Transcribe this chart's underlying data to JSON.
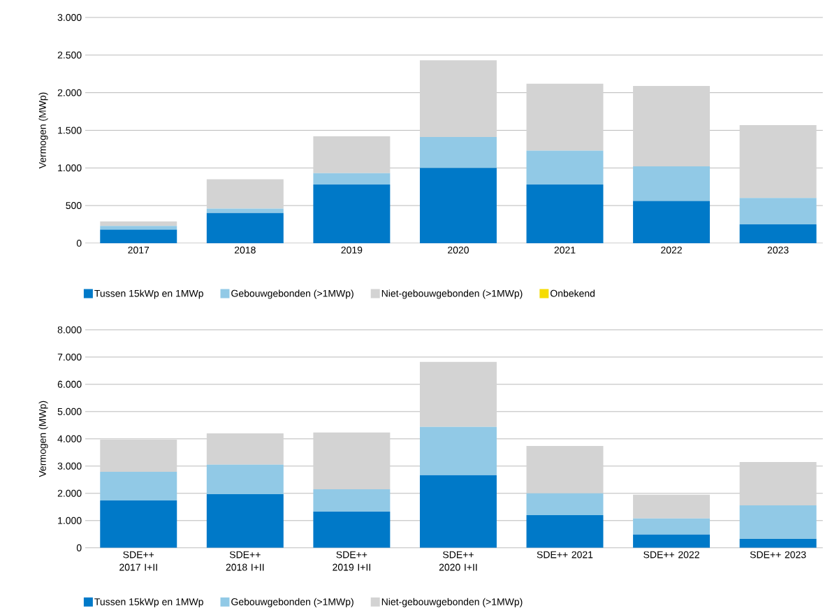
{
  "chart_data": [
    {
      "type": "bar",
      "stacked": true,
      "ylabel": "Vermogen (MWp)",
      "categories": [
        "2017",
        "2018",
        "2019",
        "2020",
        "2021",
        "2022",
        "2023"
      ],
      "series": [
        {
          "name": "Tussen 15kWp en 1MWp",
          "color": "#0079c8",
          "values": [
            180,
            400,
            780,
            1000,
            780,
            560,
            250
          ]
        },
        {
          "name": "Gebouwgebonden (>1MWp)",
          "color": "#91c9e6",
          "values": [
            50,
            60,
            150,
            410,
            450,
            460,
            350
          ]
        },
        {
          "name": "Niet-gebouwgebonden (>1MWp)",
          "color": "#d3d3d3",
          "values": [
            60,
            390,
            490,
            1020,
            890,
            1070,
            970
          ]
        },
        {
          "name": "Onbekend",
          "color": "#f5dc00",
          "values": [
            null,
            null,
            null,
            null,
            null,
            null,
            null
          ]
        }
      ],
      "ylim": [
        0,
        3000
      ],
      "yticks": [
        {
          "value": 0,
          "label": "0"
        },
        {
          "value": 500,
          "label": "500"
        },
        {
          "value": 1000,
          "label": "1.000"
        },
        {
          "value": 1500,
          "label": "1.500"
        },
        {
          "value": 2000,
          "label": "2.000"
        },
        {
          "value": 2500,
          "label": "2.500"
        },
        {
          "value": 3000,
          "label": "3.000"
        }
      ],
      "grid": "y",
      "legend": "bottom"
    },
    {
      "type": "bar",
      "stacked": true,
      "ylabel": "Vermogen (MWp)",
      "categories": [
        "SDE++ 2017 I+II",
        "SDE++ 2018 I+II",
        "SDE++ 2019 I+II",
        "SDE++ 2020 I+II",
        "SDE++ 2021",
        "SDE++ 2022",
        "SDE++ 2023"
      ],
      "series": [
        {
          "name": "Tussen 15kWp en 1MWp",
          "color": "#0079c8",
          "values": [
            1740,
            1970,
            1330,
            2670,
            1200,
            490,
            330
          ]
        },
        {
          "name": "Gebouwgebonden (>1MWp)",
          "color": "#91c9e6",
          "values": [
            1050,
            1080,
            820,
            1770,
            800,
            590,
            1230
          ]
        },
        {
          "name": "Niet-gebouwgebonden (>1MWp)",
          "color": "#d3d3d3",
          "values": [
            1180,
            1150,
            2080,
            2380,
            1740,
            870,
            1590
          ]
        }
      ],
      "ylim": [
        0,
        8000
      ],
      "yticks": [
        {
          "value": 0,
          "label": "0"
        },
        {
          "value": 1000,
          "label": "1.000"
        },
        {
          "value": 2000,
          "label": "2.000"
        },
        {
          "value": 3000,
          "label": "3.000"
        },
        {
          "value": 4000,
          "label": "4.000"
        },
        {
          "value": 5000,
          "label": "5.000"
        },
        {
          "value": 6000,
          "label": "6.000"
        },
        {
          "value": 7000,
          "label": "7.000"
        },
        {
          "value": 8000,
          "label": "8.000"
        }
      ],
      "grid": "y",
      "legend": "bottom"
    }
  ]
}
